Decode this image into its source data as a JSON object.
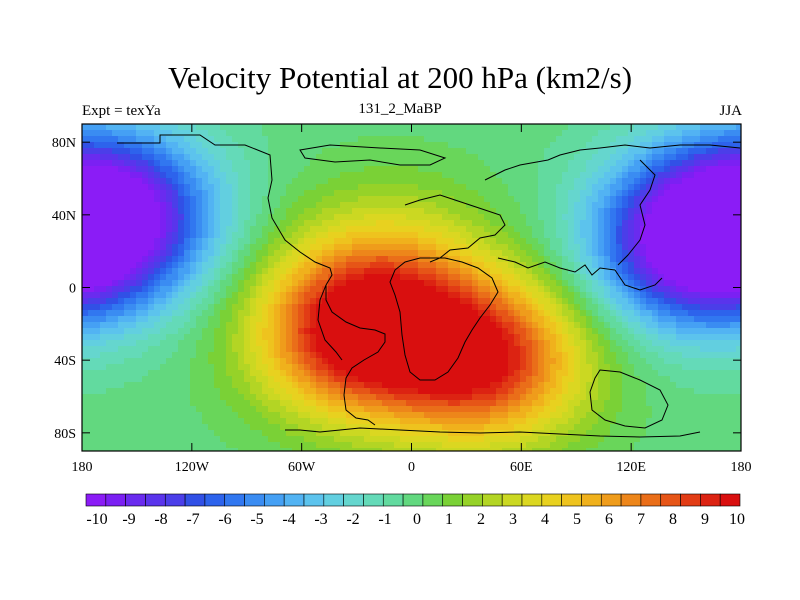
{
  "title": "Velocity Potential at 200 hPa (km2/s)",
  "subtitle_left": "Expt = texYa",
  "subtitle_center": "131_2_MaBP",
  "subtitle_right": "JJA",
  "map": {
    "projection": "cylindrical-equidistant",
    "lon_range": [
      -180,
      180
    ],
    "lat_range": [
      -90,
      90
    ],
    "x_ticks": [
      "180",
      "120W",
      "60W",
      "0",
      "60E",
      "120E",
      "180"
    ],
    "y_ticks": [
      "80N",
      "40N",
      "0",
      "40S",
      "80S"
    ],
    "field": "velocity potential at 200 hPa",
    "centers": [
      {
        "lon": -165,
        "lat": 40,
        "value": -9.8
      },
      {
        "lon": 155,
        "lat": 25,
        "value": -10.0
      },
      {
        "lon": -30,
        "lat": -25,
        "value": 10.0
      },
      {
        "lon": 40,
        "lat": -40,
        "value": 9.0
      },
      {
        "lon": -10,
        "lat": 15,
        "value": 2.8
      }
    ]
  },
  "colorbar": {
    "labels": [
      "-10",
      "-9",
      "-8",
      "-7",
      "-6",
      "-5",
      "-4",
      "-3",
      "-2",
      "-1",
      "0",
      "1",
      "2",
      "3",
      "4",
      "5",
      "6",
      "7",
      "8",
      "9",
      "10"
    ],
    "colors": [
      "#8b1cf6",
      "#7b20f3",
      "#6a2bef",
      "#5a34ec",
      "#4b3ee9",
      "#3150e6",
      "#2d63ec",
      "#3177f0",
      "#3a8cf2",
      "#45a0f4",
      "#52b3f3",
      "#5cc3ed",
      "#62cfe0",
      "#65d6ce",
      "#64dab8",
      "#62da9f",
      "#62d87f",
      "#69d65a",
      "#7ad136",
      "#96d228",
      "#b3d524",
      "#cbd822",
      "#dbd721",
      "#e8d11f",
      "#eec31e",
      "#f0b11c",
      "#ef9c1b",
      "#ed861a",
      "#ea6e19",
      "#e65517",
      "#e23c15",
      "#dc2312",
      "#d90f0f"
    ]
  }
}
